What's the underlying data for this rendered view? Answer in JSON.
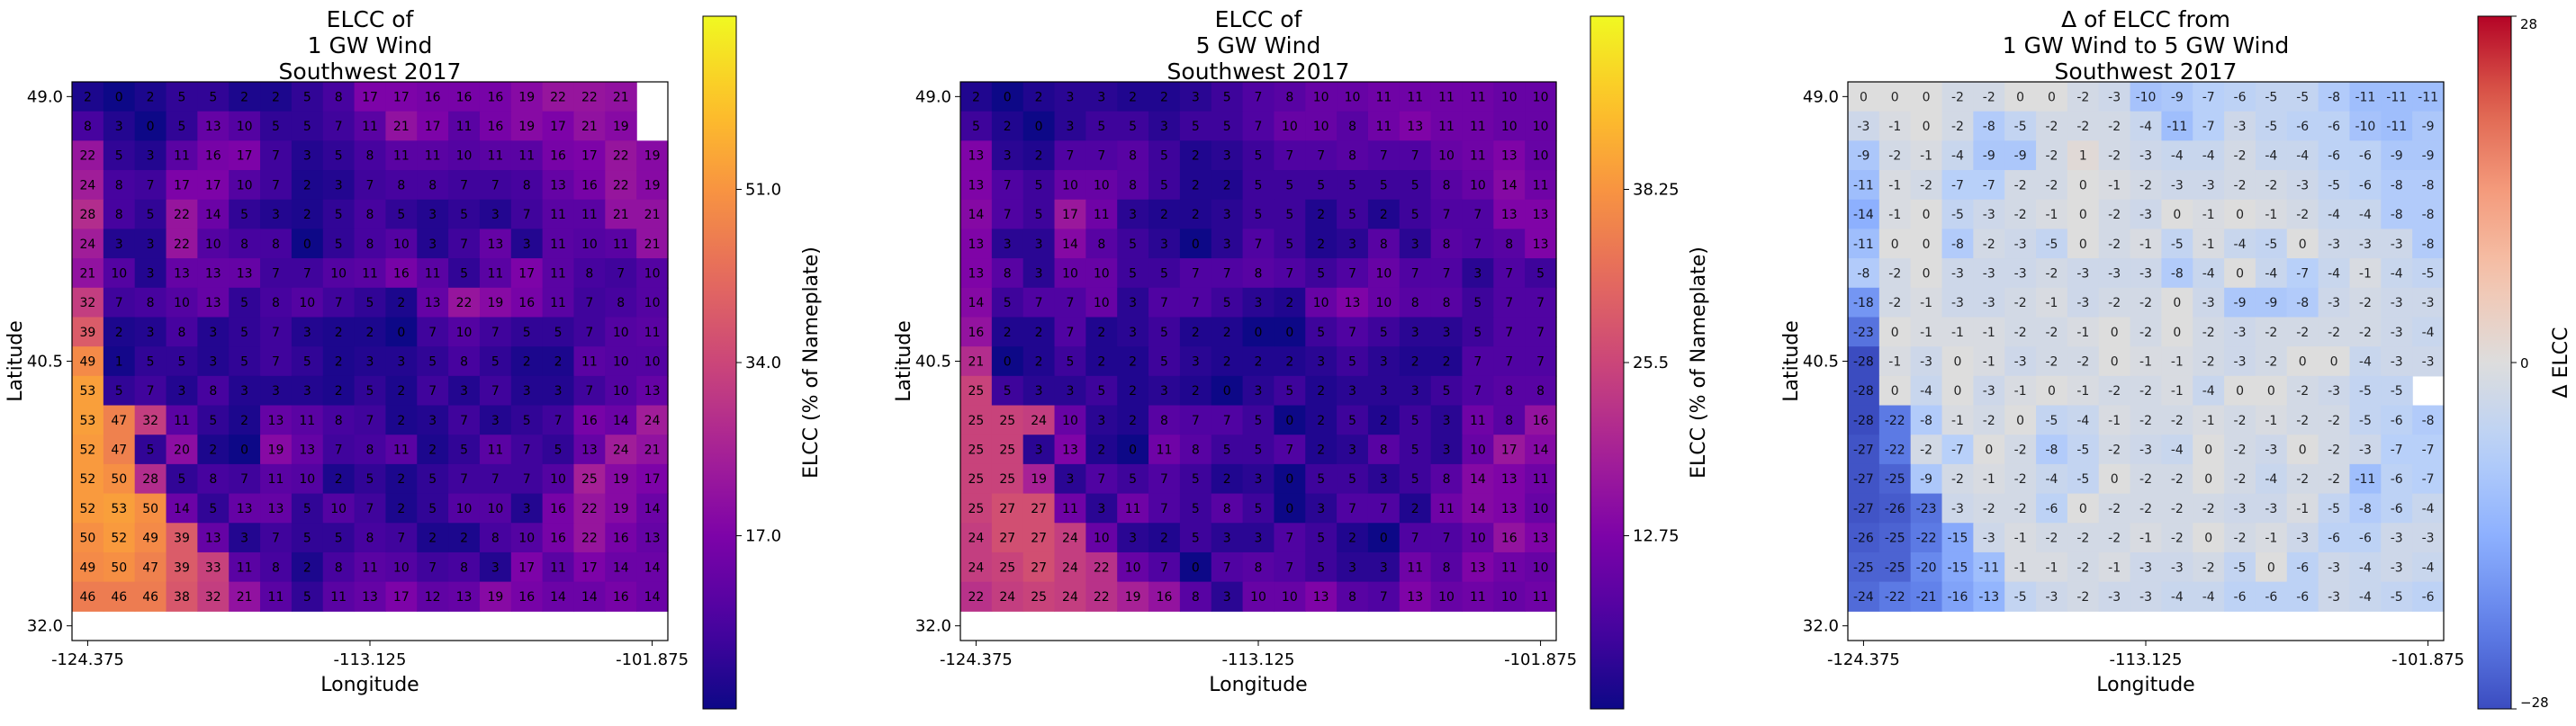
{
  "chart_data": [
    {
      "type": "heatmap",
      "title": "ELCC of\n1 GW Wind\nSouthwest 2017",
      "xlabel": "Longitude",
      "ylabel": "Latitude",
      "xticks": [
        "-124.375",
        "-113.125",
        "-101.875"
      ],
      "yticks": [
        "49.0",
        "40.5",
        "32.0"
      ],
      "colorbar": {
        "label": "ELCC (% of Nameplate)",
        "colormap": "plasma",
        "vmin": 0,
        "vmax": 68,
        "ticks": [
          "17.0",
          "34.0",
          "51.0"
        ],
        "tick_values": [
          17,
          34,
          51
        ]
      },
      "rows": [
        [
          2,
          0,
          2,
          5,
          5,
          2,
          2,
          5,
          8,
          17,
          17,
          16,
          16,
          16,
          19,
          22,
          22,
          21
        ],
        [
          8,
          3,
          0,
          5,
          13,
          10,
          5,
          5,
          7,
          11,
          21,
          17,
          11,
          16,
          19,
          17,
          21,
          19
        ],
        [
          22,
          5,
          3,
          11,
          16,
          17,
          7,
          3,
          5,
          8,
          11,
          11,
          10,
          11,
          11,
          16,
          17,
          22,
          19
        ],
        [
          24,
          8,
          7,
          17,
          17,
          10,
          7,
          2,
          3,
          7,
          8,
          8,
          7,
          7,
          8,
          13,
          16,
          22,
          19
        ],
        [
          28,
          8,
          5,
          22,
          14,
          5,
          3,
          2,
          5,
          8,
          5,
          3,
          5,
          3,
          7,
          11,
          11,
          21,
          21
        ],
        [
          24,
          3,
          3,
          22,
          10,
          8,
          8,
          0,
          5,
          8,
          10,
          3,
          7,
          13,
          3,
          11,
          10,
          11,
          21
        ],
        [
          21,
          10,
          3,
          13,
          13,
          13,
          7,
          7,
          10,
          11,
          16,
          11,
          5,
          11,
          17,
          11,
          8,
          7,
          10,
          10
        ],
        [
          32,
          7,
          8,
          10,
          13,
          5,
          8,
          10,
          7,
          5,
          2,
          13,
          22,
          19,
          16,
          11,
          7,
          8,
          10
        ],
        [
          39,
          2,
          3,
          8,
          3,
          5,
          7,
          3,
          2,
          2,
          0,
          7,
          10,
          7,
          5,
          5,
          7,
          10,
          11
        ],
        [
          49,
          1,
          5,
          5,
          3,
          5,
          7,
          5,
          2,
          3,
          3,
          5,
          8,
          5,
          2,
          2,
          11,
          10,
          10
        ],
        [
          53,
          5,
          7,
          3,
          8,
          3,
          3,
          3,
          2,
          5,
          2,
          7,
          3,
          7,
          3,
          3,
          7,
          10,
          13,
          13
        ],
        [
          53,
          47,
          32,
          11,
          5,
          2,
          13,
          11,
          8,
          7,
          2,
          3,
          7,
          3,
          5,
          7,
          16,
          14,
          24
        ],
        [
          52,
          47,
          5,
          20,
          2,
          0,
          19,
          13,
          7,
          8,
          11,
          2,
          5,
          11,
          7,
          5,
          13,
          24,
          21
        ],
        [
          52,
          50,
          28,
          5,
          8,
          7,
          11,
          10,
          2,
          5,
          2,
          5,
          7,
          7,
          7,
          10,
          25,
          19,
          17
        ],
        [
          52,
          53,
          50,
          14,
          5,
          13,
          13,
          5,
          10,
          7,
          2,
          5,
          10,
          10,
          3,
          16,
          22,
          19,
          14
        ],
        [
          50,
          52,
          49,
          39,
          13,
          3,
          7,
          5,
          5,
          8,
          7,
          2,
          2,
          8,
          10,
          16,
          22,
          16,
          13
        ],
        [
          49,
          50,
          47,
          39,
          33,
          11,
          8,
          2,
          8,
          11,
          10,
          7,
          8,
          3,
          17,
          11,
          17,
          14,
          14
        ],
        [
          46,
          46,
          46,
          38,
          32,
          21,
          11,
          5,
          11,
          13,
          17,
          12,
          13,
          19,
          16,
          14,
          14,
          16,
          14
        ]
      ]
    },
    {
      "type": "heatmap",
      "title": "ELCC of\n5 GW Wind\nSouthwest 2017",
      "xlabel": "Longitude",
      "ylabel": "Latitude",
      "xticks": [
        "-124.375",
        "-113.125",
        "-101.875"
      ],
      "yticks": [
        "49.0",
        "40.5",
        "32.0"
      ],
      "colorbar": {
        "label": "ELCC (% of Nameplate)",
        "colormap": "plasma",
        "vmin": 0,
        "vmax": 51,
        "ticks": [
          "12.75",
          "25.5",
          "38.25"
        ],
        "tick_values": [
          12.75,
          25.5,
          38.25
        ]
      },
      "rows": [
        [
          2,
          0,
          2,
          3,
          3,
          2,
          2,
          3,
          5,
          7,
          8,
          10,
          10,
          11,
          11,
          11,
          11,
          10,
          10
        ],
        [
          5,
          2,
          0,
          3,
          5,
          5,
          3,
          5,
          5,
          7,
          10,
          10,
          8,
          11,
          13,
          11,
          11,
          10,
          10
        ],
        [
          13,
          3,
          2,
          7,
          7,
          8,
          5,
          2,
          3,
          5,
          7,
          7,
          8,
          7,
          7,
          10,
          11,
          13,
          10
        ],
        [
          13,
          7,
          5,
          10,
          10,
          8,
          5,
          2,
          2,
          5,
          5,
          5,
          5,
          5,
          5,
          8,
          10,
          14,
          11
        ],
        [
          14,
          7,
          5,
          17,
          11,
          3,
          2,
          2,
          3,
          5,
          5,
          2,
          5,
          2,
          5,
          7,
          7,
          13,
          13
        ],
        [
          13,
          3,
          3,
          14,
          8,
          5,
          3,
          0,
          3,
          7,
          5,
          2,
          3,
          8,
          3,
          8,
          7,
          8,
          13
        ],
        [
          13,
          8,
          3,
          10,
          10,
          5,
          5,
          7,
          7,
          8,
          7,
          5,
          7,
          10,
          7,
          7,
          3,
          7,
          5
        ],
        [
          14,
          5,
          7,
          7,
          10,
          3,
          7,
          7,
          5,
          3,
          2,
          10,
          13,
          10,
          8,
          8,
          5,
          7,
          7
        ],
        [
          16,
          2,
          2,
          7,
          2,
          3,
          5,
          2,
          2,
          0,
          0,
          5,
          7,
          5,
          3,
          3,
          5,
          7,
          7
        ],
        [
          21,
          0,
          2,
          5,
          2,
          2,
          5,
          3,
          2,
          2,
          2,
          3,
          5,
          3,
          2,
          2,
          7,
          7,
          7
        ],
        [
          25,
          5,
          3,
          3,
          5,
          2,
          3,
          2,
          0,
          3,
          5,
          2,
          3,
          3,
          3,
          5,
          7,
          8,
          8
        ],
        [
          25,
          25,
          24,
          10,
          3,
          2,
          8,
          7,
          7,
          5,
          0,
          2,
          5,
          2,
          5,
          3,
          11,
          8,
          16
        ],
        [
          25,
          25,
          3,
          13,
          2,
          0,
          11,
          8,
          5,
          5,
          7,
          2,
          3,
          8,
          5,
          3,
          10,
          17,
          14
        ],
        [
          25,
          25,
          19,
          3,
          7,
          5,
          7,
          5,
          2,
          3,
          0,
          5,
          5,
          3,
          5,
          8,
          14,
          13,
          11
        ],
        [
          25,
          27,
          27,
          11,
          3,
          11,
          7,
          5,
          8,
          5,
          0,
          3,
          7,
          7,
          2,
          11,
          14,
          13,
          10
        ],
        [
          24,
          27,
          27,
          24,
          10,
          3,
          2,
          5,
          3,
          3,
          7,
          5,
          2,
          0,
          7,
          7,
          10,
          16,
          13,
          10
        ],
        [
          24,
          25,
          27,
          24,
          22,
          10,
          7,
          0,
          7,
          8,
          7,
          5,
          3,
          3,
          11,
          8,
          13,
          11,
          10
        ],
        [
          22,
          24,
          25,
          24,
          22,
          19,
          16,
          8,
          3,
          10,
          10,
          13,
          8,
          7,
          13,
          10,
          11,
          10,
          11,
          8
        ]
      ]
    },
    {
      "type": "heatmap",
      "title": "Δ of ELCC from\n1 GW Wind to 5 GW Wind\nSouthwest 2017",
      "xlabel": "Longitude",
      "ylabel": "Latitude",
      "xticks": [
        "-124.375",
        "-113.125",
        "-101.875"
      ],
      "yticks": [
        "49.0",
        "40.5",
        "32.0"
      ],
      "colorbar": {
        "label": "Δ ELCC",
        "colormap": "coolwarm",
        "vmin": -28,
        "vmax": 28,
        "ticks": [
          "−28",
          "0",
          "28"
        ],
        "tick_values": [
          -28,
          0,
          28
        ]
      },
      "rows": [
        [
          0,
          0,
          0,
          -2,
          -2,
          0,
          0,
          -2,
          -3,
          -10,
          -9,
          -7,
          -6,
          -5,
          -5,
          -8,
          -11,
          -11,
          -11
        ],
        [
          -3,
          -1,
          0,
          -2,
          -8,
          -5,
          -2,
          -2,
          -2,
          -4,
          -11,
          -7,
          -3,
          -5,
          -6,
          -6,
          -10,
          -11,
          -9
        ],
        [
          -9,
          -2,
          -1,
          -4,
          -9,
          -9,
          -2,
          1,
          -2,
          -3,
          -4,
          -4,
          -2,
          -4,
          -4,
          -6,
          -6,
          -9,
          -9
        ],
        [
          -11,
          -1,
          -2,
          -7,
          -7,
          -2,
          -2,
          0,
          -1,
          -2,
          -3,
          -3,
          -2,
          -2,
          -3,
          -5,
          -6,
          -8,
          -8
        ],
        [
          -14,
          -1,
          0,
          -5,
          -3,
          -2,
          -1,
          0,
          -2,
          -3,
          0,
          -1,
          0,
          -1,
          -2,
          -4,
          -4,
          -8,
          -8
        ],
        [
          -11,
          0,
          0,
          -8,
          -2,
          -3,
          -5,
          0,
          -2,
          -1,
          -5,
          -1,
          -4,
          -5,
          0,
          -3,
          -3,
          -3,
          -8
        ],
        [
          -8,
          -2,
          0,
          -3,
          -3,
          -3,
          -2,
          -3,
          -3,
          -3,
          -8,
          -4,
          0,
          -4,
          -7,
          -4,
          -1,
          -4,
          -5
        ],
        [
          -18,
          -2,
          -1,
          -3,
          -3,
          -2,
          -1,
          -3,
          -2,
          -2,
          0,
          -3,
          -9,
          -9,
          -8,
          -3,
          -2,
          -3,
          -3
        ],
        [
          -23,
          0,
          -1,
          -1,
          -1,
          -2,
          -2,
          -1,
          0,
          -2,
          0,
          -2,
          -3,
          -2,
          -2,
          -2,
          -2,
          -3,
          -4
        ],
        [
          -28,
          -1,
          -3,
          0,
          -1,
          -3,
          -2,
          -2,
          0,
          -1,
          -1,
          -2,
          -3,
          -2,
          0,
          0,
          -4,
          -3,
          -3
        ],
        [
          -28,
          0,
          -4,
          0,
          -3,
          -1,
          0,
          -1,
          -2,
          -2,
          -1,
          -4,
          0,
          0,
          -2,
          -3,
          -5,
          -5
        ],
        [
          -28,
          -22,
          -8,
          -1,
          -2,
          0,
          -5,
          -4,
          -1,
          -2,
          -2,
          -1,
          -2,
          -1,
          -2,
          -2,
          -5,
          -6,
          -8
        ],
        [
          -27,
          -22,
          -2,
          -7,
          0,
          -2,
          -8,
          -5,
          -2,
          -3,
          -4,
          0,
          -2,
          -3,
          0,
          -2,
          -3,
          -7,
          -7
        ],
        [
          -27,
          -25,
          -9,
          -2,
          -1,
          -2,
          -4,
          -5,
          0,
          -2,
          -2,
          0,
          -2,
          -4,
          -2,
          -2,
          -11,
          -6,
          -7
        ],
        [
          -27,
          -26,
          -23,
          -3,
          -2,
          -2,
          -6,
          0,
          -2,
          -2,
          -2,
          -2,
          -3,
          -3,
          -1,
          -5,
          -8,
          -6,
          -4
        ],
        [
          -26,
          -25,
          -22,
          -15,
          -3,
          -1,
          -2,
          -2,
          -2,
          -1,
          -2,
          0,
          -2,
          -1,
          -3,
          -6,
          -6,
          -3,
          -3
        ],
        [
          -25,
          -25,
          -20,
          -15,
          -11,
          -1,
          -1,
          -2,
          -1,
          -3,
          -3,
          -2,
          -5,
          0,
          -6,
          -3,
          -4,
          -3,
          -4
        ],
        [
          -24,
          -22,
          -21,
          -16,
          -13,
          -5,
          -3,
          -2,
          -3,
          -3,
          -4,
          -4,
          -6,
          -6,
          -6,
          -3,
          -4,
          -5,
          -6
        ]
      ]
    }
  ]
}
